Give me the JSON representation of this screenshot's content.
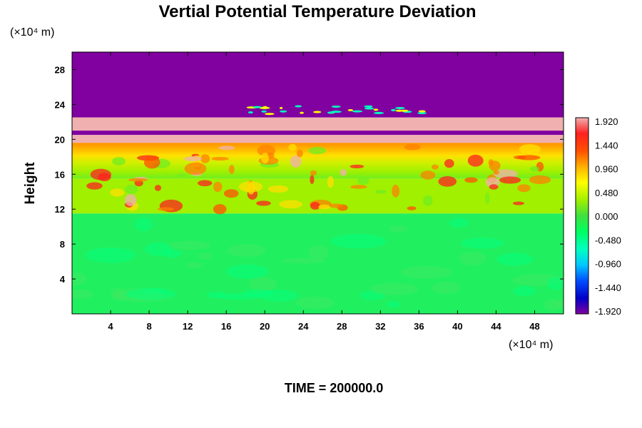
{
  "chart_data": {
    "type": "heatmap",
    "title": "Vertial Potential Temperature Deviation",
    "ylabel": "Height",
    "x_unit": "(×10⁴ m)",
    "y_unit": "(×10⁴ m)",
    "x_ticks": [
      4,
      8,
      12,
      16,
      20,
      24,
      28,
      32,
      36,
      40,
      44,
      48
    ],
    "y_ticks": [
      4,
      8,
      12,
      16,
      20,
      24,
      28
    ],
    "xlim": [
      0,
      51
    ],
    "ylim": [
      0,
      30
    ],
    "colorbar": {
      "min": -1.92,
      "max": 1.92,
      "labels": [
        "1.920",
        "1.440",
        "0.960",
        "0.480",
        "0.000",
        "-0.480",
        "-0.960",
        "-1.440",
        "-1.920"
      ],
      "colors": [
        "#8000a0",
        "#0000c8",
        "#0050ff",
        "#00c8ff",
        "#00ffc0",
        "#00ff60",
        "#40e040",
        "#a0f000",
        "#ffff00",
        "#ffb000",
        "#ff5000",
        "#ff2020",
        "#f0b0b0"
      ]
    },
    "layers": [
      {
        "name": "top",
        "y_range": [
          22.5,
          30
        ],
        "value": -1.92
      },
      {
        "name": "band-upper",
        "y_range": [
          21.0,
          22.5
        ],
        "value": 1.92
      },
      {
        "name": "band-dark",
        "y_range": [
          20.5,
          21.0
        ],
        "value": -1.92
      },
      {
        "name": "band-lower",
        "y_range": [
          19.6,
          20.5
        ],
        "value": 1.92
      },
      {
        "name": "mix-upper",
        "y_range": [
          15.5,
          19.6
        ],
        "value": 1.0
      },
      {
        "name": "mix-lower",
        "y_range": [
          11.5,
          15.5
        ],
        "value": 0.4
      },
      {
        "name": "base",
        "y_range": [
          0,
          11.5
        ],
        "value": 0.0
      }
    ],
    "footer": "TIME = 200000.0"
  }
}
